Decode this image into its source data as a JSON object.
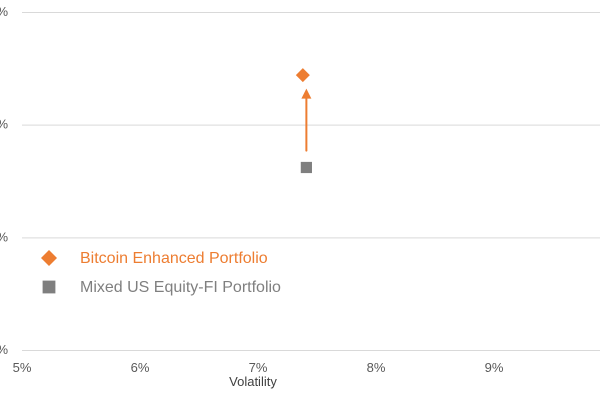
{
  "chart_data": {
    "type": "scatter",
    "title": "",
    "xlabel": "Volatility",
    "ylabel": "",
    "xlim": [
      5,
      10
    ],
    "ylim": [
      0,
      3
    ],
    "x_ticks": [
      {
        "value": 5,
        "label": "5%"
      },
      {
        "value": 6,
        "label": "6%"
      },
      {
        "value": 7,
        "label": "7%"
      },
      {
        "value": 8,
        "label": "8%"
      },
      {
        "value": 9,
        "label": "9%"
      }
    ],
    "y_ticks": [
      {
        "value": 0,
        "label": "%"
      },
      {
        "value": 1,
        "label": "%"
      },
      {
        "value": 2,
        "label": "%"
      },
      {
        "value": 3,
        "label": "%"
      }
    ],
    "grid": {
      "horizontal": true,
      "vertical": false
    },
    "legend_position": "bottom-left",
    "series": [
      {
        "name": "Bitcoin Enhanced Portfolio",
        "marker": "diamond",
        "color": "#ED7D31",
        "points": [
          {
            "x": 7.38,
            "y": 2.44
          }
        ]
      },
      {
        "name": "Mixed US Equity-FI Portfolio",
        "marker": "square",
        "color": "#7F7F7F",
        "points": [
          {
            "x": 7.41,
            "y": 1.62
          }
        ]
      }
    ],
    "annotations": [
      {
        "type": "arrow",
        "color": "#ED7D31",
        "from": {
          "x": 7.41,
          "y": 1.77
        },
        "to": {
          "x": 7.41,
          "y": 2.32
        }
      }
    ],
    "colors": {
      "grid": "#D9D9D9",
      "tick_text": "#595959",
      "axis_title": "#404040"
    }
  }
}
